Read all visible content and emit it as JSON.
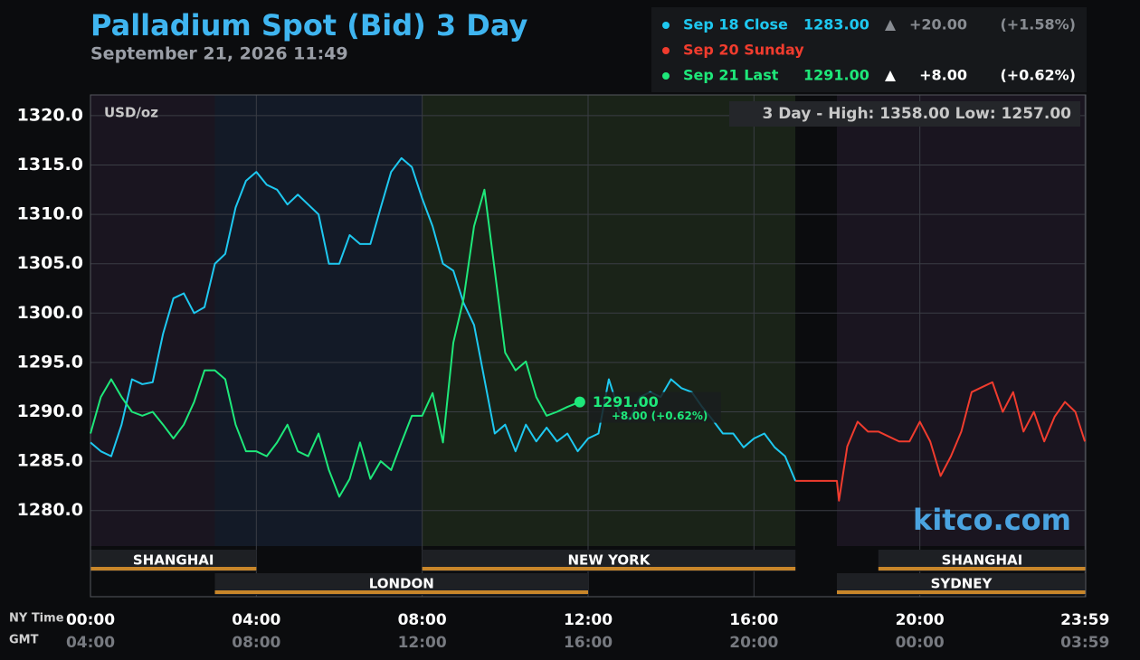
{
  "chart_data": {
    "type": "line",
    "title": "Palladium Spot (Bid) 3 Day",
    "subtitle": "September 21, 2026 11:49",
    "unit_label": "USD/oz",
    "range_note": "3 Day - High: 1358.00  Low: 1257.00",
    "brand": "kitco.com",
    "last_label": "1291.00",
    "last_change_label": "+8.00 (+0.62%)",
    "x_axis_label": "NY Time",
    "x2_axis_label": "GMT",
    "xlim": [
      0,
      24
    ],
    "ylim": [
      1276.4,
      1322.1
    ],
    "xticks": [
      {
        "value": 0,
        "label": "00:00"
      },
      {
        "value": 4,
        "label": "04:00"
      },
      {
        "value": 8,
        "label": "08:00"
      },
      {
        "value": 12,
        "label": "12:00"
      },
      {
        "value": 16,
        "label": "16:00"
      },
      {
        "value": 20,
        "label": "20:00"
      },
      {
        "value": 23.983,
        "label": "23:59"
      }
    ],
    "x2tick_labels": [
      "04:00",
      "08:00",
      "12:00",
      "16:00",
      "20:00",
      "00:00",
      "03:59"
    ],
    "yticks": [
      {
        "value": 1280,
        "label": "1280.0"
      },
      {
        "value": 1285,
        "label": "1285.0"
      },
      {
        "value": 1290,
        "label": "1290.0"
      },
      {
        "value": 1295,
        "label": "1295.0"
      },
      {
        "value": 1300,
        "label": "1300.0"
      },
      {
        "value": 1305,
        "label": "1305.0"
      },
      {
        "value": 1310,
        "label": "1310.0"
      },
      {
        "value": 1315,
        "label": "1315.0"
      },
      {
        "value": 1320,
        "label": "1320.0"
      }
    ],
    "grid": true,
    "sessions": [
      {
        "name": "SHANGHAI",
        "start": 0,
        "end": 4,
        "row": 0
      },
      {
        "name": "LONDON",
        "start": 3,
        "end": 12,
        "row": 1
      },
      {
        "name": "NEW YORK",
        "start": 8,
        "end": 17,
        "row": 0
      },
      {
        "name": "SHANGHAI",
        "start": 19,
        "end": 24,
        "row": 0
      },
      {
        "name": "SYDNEY",
        "start": 18,
        "end": 24,
        "row": 1
      }
    ],
    "series": [
      {
        "name": "Sep 18 Close",
        "color": "#1ec8f0",
        "legend_value": "1283.00",
        "legend_change": "+20.00",
        "legend_pct": "(+1.58%)",
        "x": [
          0,
          0.25,
          0.5,
          0.75,
          1,
          1.25,
          1.5,
          1.75,
          2,
          2.25,
          2.5,
          2.75,
          3,
          3.25,
          3.5,
          3.75,
          4,
          4.25,
          4.5,
          4.75,
          5,
          5.25,
          5.5,
          5.75,
          6,
          6.25,
          6.5,
          6.75,
          7,
          7.25,
          7.5,
          7.75,
          8,
          8.25,
          8.5,
          8.75,
          9,
          9.25,
          9.5,
          9.75,
          10,
          10.25,
          10.5,
          10.75,
          11,
          11.25,
          11.5,
          11.75,
          12,
          12.25,
          12.5,
          12.75,
          13,
          13.25,
          13.5,
          13.75,
          14,
          14.25,
          14.5,
          14.75,
          15,
          15.25,
          15.5,
          15.75,
          16,
          16.25,
          16.5,
          16.75,
          17
        ],
        "values": [
          1286.9,
          1286,
          1285.5,
          1288.7,
          1293.3,
          1292.8,
          1293,
          1297.9,
          1301.5,
          1302,
          1300,
          1300.6,
          1305,
          1306,
          1310.7,
          1313.4,
          1314.3,
          1313,
          1312.5,
          1311,
          1312,
          1311,
          1310,
          1305,
          1305,
          1307.9,
          1307,
          1307,
          1310.7,
          1314.3,
          1315.7,
          1314.8,
          1311.6,
          1308.8,
          1305,
          1304.3,
          1301,
          1298.8,
          1293.3,
          1287.8,
          1288.7,
          1286,
          1288.7,
          1287,
          1288.4,
          1287,
          1287.8,
          1286,
          1287.3,
          1287.8,
          1293.3,
          1290,
          1289.2,
          1291.5,
          1292,
          1291.5,
          1293.3,
          1292.4,
          1292,
          1290.5,
          1289.2,
          1287.8,
          1287.8,
          1286.4,
          1287.3,
          1287.8,
          1286.4,
          1285.5,
          1283
        ]
      },
      {
        "name": "Sep 20 Sunday",
        "color": "#f03c2e",
        "x": [
          17,
          17.5,
          18,
          18.05,
          18.25,
          18.5,
          18.75,
          19,
          19.25,
          19.5,
          19.75,
          20,
          20.25,
          20.5,
          20.75,
          21,
          21.25,
          21.5,
          21.75,
          22,
          22.25,
          22.5,
          22.75,
          23,
          23.25,
          23.5,
          23.75,
          23.98
        ],
        "values": [
          1283,
          1283,
          1283,
          1281,
          1286.5,
          1289,
          1288,
          1288,
          1287.5,
          1287,
          1287,
          1289,
          1287,
          1283.5,
          1285.5,
          1288,
          1292,
          1292.5,
          1293,
          1290,
          1292,
          1288,
          1290,
          1287,
          1289.5,
          1291,
          1290,
          1287
        ]
      },
      {
        "name": "Sep 21 Last",
        "color": "#1ee87a",
        "legend_value": "1291.00",
        "legend_change": "+8.00",
        "legend_pct": "(+0.62%)",
        "x": [
          0,
          0.25,
          0.5,
          0.75,
          1,
          1.25,
          1.5,
          1.75,
          2,
          2.25,
          2.5,
          2.75,
          3,
          3.25,
          3.5,
          3.75,
          4,
          4.25,
          4.5,
          4.75,
          5,
          5.25,
          5.5,
          5.75,
          6,
          6.25,
          6.5,
          6.75,
          7,
          7.25,
          7.5,
          7.75,
          8,
          8.25,
          8.5,
          8.75,
          9,
          9.25,
          9.5,
          9.75,
          10,
          10.25,
          10.5,
          10.75,
          11,
          11.25,
          11.5,
          11.8
        ],
        "values": [
          1287.8,
          1291.5,
          1293.3,
          1291.5,
          1290,
          1289.6,
          1290,
          1288.7,
          1287.3,
          1288.7,
          1291,
          1294.2,
          1294.2,
          1293.3,
          1288.7,
          1286,
          1286,
          1285.5,
          1286.9,
          1288.7,
          1286,
          1285.5,
          1287.8,
          1284.1,
          1281.4,
          1283.2,
          1286.9,
          1283.2,
          1285,
          1284.1,
          1286.9,
          1289.6,
          1289.6,
          1291.9,
          1286.9,
          1297,
          1301.5,
          1308.8,
          1312.5,
          1304.3,
          1296,
          1294.2,
          1295.1,
          1291.5,
          1289.6,
          1290,
          1290.5,
          1291
        ]
      }
    ]
  }
}
